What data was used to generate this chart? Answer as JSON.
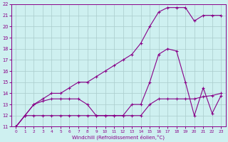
{
  "xlabel": "Windchill (Refroidissement éolien,°C)",
  "background_color": "#cef0f0",
  "grid_color": "#aacccc",
  "line_color": "#880088",
  "xlim": [
    -0.5,
    23.5
  ],
  "ylim": [
    11,
    22
  ],
  "xticks": [
    0,
    1,
    2,
    3,
    4,
    5,
    6,
    7,
    8,
    9,
    10,
    11,
    12,
    13,
    14,
    15,
    16,
    17,
    18,
    19,
    20,
    21,
    22,
    23
  ],
  "yticks": [
    11,
    12,
    13,
    14,
    15,
    16,
    17,
    18,
    19,
    20,
    21,
    22
  ],
  "line1_x": [
    0,
    1,
    2,
    3,
    4,
    5,
    6,
    7,
    8,
    9,
    10,
    11,
    12,
    13,
    14,
    15,
    16,
    17,
    18,
    19,
    20,
    21,
    22,
    23
  ],
  "line1_y": [
    11,
    12,
    12,
    12,
    12,
    12,
    12,
    12,
    12,
    12,
    12,
    12,
    12,
    12,
    12,
    13,
    13.5,
    13.5,
    13.5,
    13.5,
    13.5,
    13.7,
    13.8,
    14
  ],
  "line2_x": [
    0,
    1,
    2,
    3,
    4,
    5,
    6,
    7,
    8,
    9,
    10,
    11,
    12,
    13,
    14,
    15,
    16,
    17,
    18,
    19,
    20,
    21,
    22,
    23
  ],
  "line2_y": [
    11,
    12,
    13,
    13.3,
    13.5,
    13.5,
    13.5,
    13.5,
    13,
    12,
    12,
    12,
    12,
    13,
    13,
    15,
    17.5,
    18,
    17.8,
    15,
    12,
    14.5,
    12.2,
    13.8
  ],
  "line3_x": [
    0,
    1,
    2,
    3,
    4,
    5,
    6,
    7,
    8,
    9,
    10,
    11,
    12,
    13,
    14,
    15,
    16,
    17,
    18,
    19,
    20,
    21,
    22,
    23
  ],
  "line3_y": [
    11,
    12,
    13,
    13.5,
    14,
    14,
    14.5,
    15,
    15,
    15.5,
    16,
    16.5,
    17,
    17.5,
    18.5,
    20,
    21.3,
    21.7,
    21.7,
    21.7,
    20.5,
    21,
    21,
    21
  ]
}
